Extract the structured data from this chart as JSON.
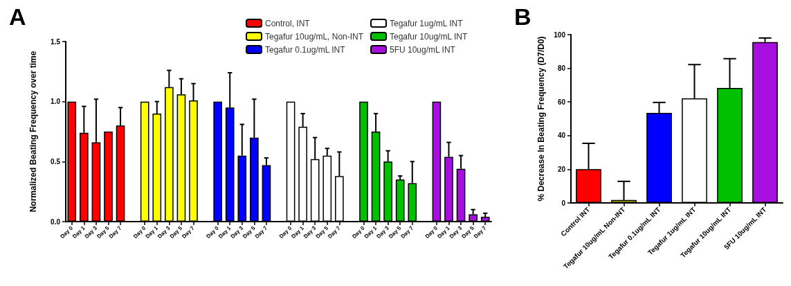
{
  "chart_data": [
    {
      "type": "bar",
      "title": "A",
      "ylabel": "Normalized Beating Frequency over time",
      "ylim": [
        0,
        1.5
      ],
      "yticks": [
        {
          "value": 0,
          "label": "0.0"
        },
        {
          "value": 0.5,
          "label": "0.5"
        },
        {
          "value": 1,
          "label": "1.0"
        },
        {
          "value": 1.5,
          "label": "1.5"
        }
      ],
      "legend": "top right",
      "grid": false,
      "categories": [
        "Day 0",
        "Day 1",
        "Day 3",
        "Day 5",
        "Day 7",
        null,
        "Day 0",
        "Day 1",
        "Day 3",
        "Day 5",
        "Day 7",
        null,
        "Day 0",
        "Day 1",
        "Day 3",
        "Day 5",
        "Day 7",
        null,
        "Day 0",
        "Day 1",
        "Day 3",
        "Day 5",
        "Day 7",
        null,
        "Day 0",
        "Day 1",
        "Day 3",
        "Day 5",
        "Day 7",
        null,
        "Day 0",
        "Day 1",
        "Day 3",
        "Day 5",
        "Day 7"
      ],
      "series": [
        {
          "name": "Control, INT",
          "color": "#ff0000",
          "values": [
            1.0,
            0.74,
            0.66,
            0.75,
            0.8,
            null,
            null,
            null,
            null,
            null,
            null,
            null,
            null,
            null,
            null,
            null,
            null,
            null,
            null,
            null,
            null,
            null,
            null,
            null,
            null,
            null,
            null,
            null,
            null,
            null,
            null,
            null,
            null,
            null,
            null
          ],
          "errors": [
            null,
            [
              0.74,
              0.96
            ],
            [
              0.66,
              1.02
            ],
            null,
            [
              0.8,
              0.95
            ],
            null,
            null,
            null,
            null,
            null,
            null,
            null,
            null,
            null,
            null,
            null,
            null,
            null,
            null,
            null,
            null,
            null,
            null,
            null,
            null,
            null,
            null,
            null,
            null,
            null,
            null,
            null,
            null,
            null,
            null
          ]
        },
        {
          "name": "Tegafur 10ug/mL, Non-INT",
          "color": "#ffff00",
          "values": [
            null,
            null,
            null,
            null,
            null,
            null,
            1.0,
            0.9,
            1.12,
            1.06,
            1.01,
            null,
            null,
            null,
            null,
            null,
            null,
            null,
            null,
            null,
            null,
            null,
            null,
            null,
            null,
            null,
            null,
            null,
            null,
            null,
            null,
            null,
            null,
            null,
            null
          ],
          "errors": [
            null,
            null,
            null,
            null,
            null,
            null,
            null,
            [
              0.9,
              1.0
            ],
            [
              1.12,
              1.26
            ],
            [
              1.06,
              1.19
            ],
            [
              1.01,
              1.15
            ],
            null,
            null,
            null,
            null,
            null,
            null,
            null,
            null,
            null,
            null,
            null,
            null,
            null,
            null,
            null,
            null,
            null,
            null,
            null,
            null,
            null,
            null,
            null,
            null
          ]
        },
        {
          "name": "Tegafur 0.1ug/mL INT",
          "color": "#0000ff",
          "values": [
            null,
            null,
            null,
            null,
            null,
            null,
            null,
            null,
            null,
            null,
            null,
            null,
            1.0,
            0.95,
            0.55,
            0.7,
            0.47,
            null,
            null,
            null,
            null,
            null,
            null,
            null,
            null,
            null,
            null,
            null,
            null,
            null,
            null,
            null,
            null,
            null,
            null
          ],
          "errors": [
            null,
            null,
            null,
            null,
            null,
            null,
            null,
            null,
            null,
            null,
            null,
            null,
            null,
            [
              0.95,
              1.24
            ],
            [
              0.55,
              0.81
            ],
            [
              0.7,
              1.02
            ],
            [
              0.47,
              0.53
            ],
            null,
            null,
            null,
            null,
            null,
            null,
            null,
            null,
            null,
            null,
            null,
            null,
            null,
            null,
            null,
            null,
            null,
            null
          ]
        },
        {
          "name": "Tegafur 1ug/mL INT",
          "color": "#ffffff",
          "values": [
            null,
            null,
            null,
            null,
            null,
            null,
            null,
            null,
            null,
            null,
            null,
            null,
            null,
            null,
            null,
            null,
            null,
            null,
            1.0,
            0.79,
            0.52,
            0.55,
            0.38,
            null,
            null,
            null,
            null,
            null,
            null,
            null,
            null,
            null,
            null,
            null,
            null
          ],
          "errors": [
            null,
            null,
            null,
            null,
            null,
            null,
            null,
            null,
            null,
            null,
            null,
            null,
            null,
            null,
            null,
            null,
            null,
            null,
            null,
            [
              0.79,
              0.9
            ],
            [
              0.52,
              0.7
            ],
            [
              0.55,
              0.61
            ],
            [
              0.38,
              0.58
            ],
            null,
            null,
            null,
            null,
            null,
            null,
            null,
            null,
            null,
            null,
            null,
            null
          ]
        },
        {
          "name": "Tegafur 10ug/mL INT",
          "color": "#00c000",
          "values": [
            null,
            null,
            null,
            null,
            null,
            null,
            null,
            null,
            null,
            null,
            null,
            null,
            null,
            null,
            null,
            null,
            null,
            null,
            null,
            null,
            null,
            null,
            null,
            null,
            1.0,
            0.75,
            0.5,
            0.35,
            0.32,
            null,
            null,
            null,
            null,
            null,
            null
          ],
          "errors": [
            null,
            null,
            null,
            null,
            null,
            null,
            null,
            null,
            null,
            null,
            null,
            null,
            null,
            null,
            null,
            null,
            null,
            null,
            null,
            null,
            null,
            null,
            null,
            null,
            null,
            [
              0.75,
              0.9
            ],
            [
              0.5,
              0.59
            ],
            [
              0.35,
              0.38
            ],
            [
              0.32,
              0.5
            ],
            null,
            null,
            null,
            null,
            null,
            null
          ]
        },
        {
          "name": "5FU 10ug/mL INT",
          "color": "#a70ee0",
          "values": [
            null,
            null,
            null,
            null,
            null,
            null,
            null,
            null,
            null,
            null,
            null,
            null,
            null,
            null,
            null,
            null,
            null,
            null,
            null,
            null,
            null,
            null,
            null,
            null,
            null,
            null,
            null,
            null,
            null,
            null,
            1.0,
            0.54,
            0.44,
            0.06,
            0.04
          ],
          "errors": [
            null,
            null,
            null,
            null,
            null,
            null,
            null,
            null,
            null,
            null,
            null,
            null,
            null,
            null,
            null,
            null,
            null,
            null,
            null,
            null,
            null,
            null,
            null,
            null,
            null,
            null,
            null,
            null,
            null,
            null,
            null,
            [
              0.54,
              0.66
            ],
            [
              0.44,
              0.55
            ],
            [
              0.06,
              0.1
            ],
            [
              0.04,
              0.07
            ]
          ]
        }
      ]
    },
    {
      "type": "bar",
      "title": "B",
      "ylabel": "% Decrease In Beating Frequency (D7/D0)",
      "ylim": [
        0,
        100
      ],
      "yticks": [
        0,
        20,
        40,
        60,
        80,
        100
      ],
      "grid": false,
      "categories": [
        "Control INT",
        "Tegafur 10ug/mL Non-INT",
        "Tegafur 0.1ug/mL INT",
        "Tegafur 1ug/mL INT",
        "Tegafur 10ug/mL INT",
        "5FU 10ug/mL INT"
      ],
      "values": [
        20.1,
        1.7,
        53.5,
        62.1,
        68.3,
        95.6
      ],
      "colors": [
        "#ff0000",
        "#c8c800",
        "#0000ff",
        "#ffffff",
        "#00c000",
        "#a70ee0"
      ],
      "errors": [
        [
          20.1,
          35.4
        ],
        [
          1.7,
          12.8
        ],
        [
          53.5,
          59.7
        ],
        [
          62.1,
          82.2
        ],
        [
          68.3,
          85.7
        ],
        [
          95.6,
          98
        ]
      ]
    }
  ]
}
